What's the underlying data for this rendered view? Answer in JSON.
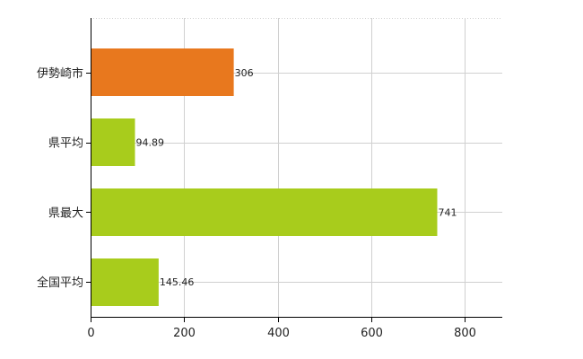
{
  "chart_data": {
    "type": "bar",
    "orientation": "horizontal",
    "categories": [
      "伊勢崎市",
      "県平均",
      "県最大",
      "全国平均"
    ],
    "values": [
      306,
      94.89,
      741,
      145.46
    ],
    "value_labels": [
      "306",
      "94.89",
      "741",
      "145.46"
    ],
    "bar_colors": [
      "#e8781e",
      "#a8cc1c",
      "#a8cc1c",
      "#a8cc1c"
    ],
    "x_ticks": [
      0,
      200,
      400,
      600,
      800
    ],
    "xlim": [
      0,
      880
    ],
    "title": "",
    "xlabel": "",
    "ylabel": "",
    "grid": true,
    "legend": "none"
  }
}
